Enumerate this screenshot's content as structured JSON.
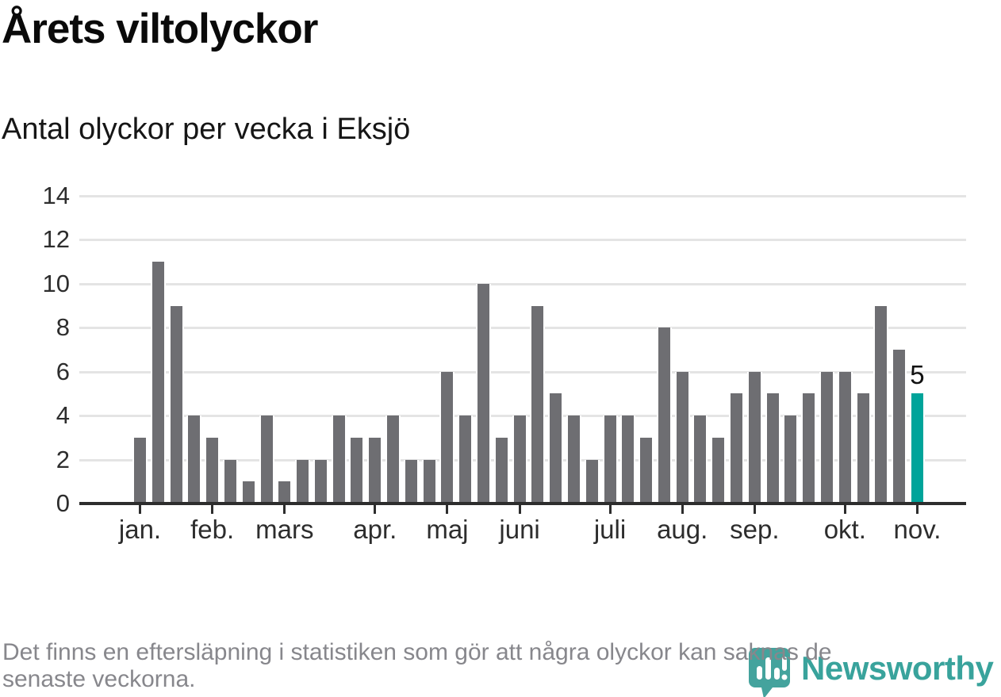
{
  "header": {
    "title": "Årets viltolyckor",
    "subtitle": "Antal olyckor per vecka i Eksjö"
  },
  "chart_data": {
    "type": "bar",
    "title": "Årets viltolyckor",
    "subtitle": "Antal olyckor per vecka i Eksjö",
    "x_unit": "vecka (week of year)",
    "values": [
      3,
      11,
      9,
      4,
      3,
      2,
      1,
      4,
      1,
      2,
      2,
      4,
      3,
      3,
      4,
      2,
      2,
      6,
      4,
      10,
      3,
      4,
      9,
      5,
      4,
      2,
      4,
      4,
      3,
      8,
      6,
      4,
      3,
      5,
      6,
      5,
      4,
      5,
      6,
      6,
      5,
      9,
      7,
      5
    ],
    "weeks": [
      1,
      2,
      3,
      4,
      5,
      6,
      7,
      8,
      9,
      10,
      11,
      12,
      13,
      14,
      15,
      16,
      17,
      18,
      19,
      20,
      21,
      22,
      23,
      24,
      25,
      26,
      27,
      28,
      29,
      30,
      31,
      32,
      33,
      34,
      35,
      36,
      37,
      38,
      39,
      40,
      41,
      42,
      43,
      44
    ],
    "months": [
      {
        "label": "jan.",
        "week": 1
      },
      {
        "label": "feb.",
        "week": 5
      },
      {
        "label": "mars",
        "week": 9
      },
      {
        "label": "apr.",
        "week": 14
      },
      {
        "label": "maj",
        "week": 18
      },
      {
        "label": "juni",
        "week": 22
      },
      {
        "label": "juli",
        "week": 27
      },
      {
        "label": "aug.",
        "week": 31
      },
      {
        "label": "sep.",
        "week": 35
      },
      {
        "label": "okt.",
        "week": 40
      },
      {
        "label": "nov.",
        "week": 44
      }
    ],
    "y_ticks": [
      0,
      2,
      4,
      6,
      8,
      10,
      12,
      14
    ],
    "ylim": [
      0,
      14
    ],
    "grid": true,
    "legend": false,
    "highlight_last_bar": true,
    "highlight_value_label": "5",
    "colors": {
      "bar": "#6e6e72",
      "highlight": "#00a49a",
      "gridline": "#e4e4e4",
      "axis": "#2d2d2d",
      "label": "#2d2d2d"
    }
  },
  "footer": {
    "line1": "Det finns en eftersläpning i statistiken som gör att några olyckor kan saknas de",
    "line2": "senaste veckorna."
  },
  "logo": {
    "text": "Newsworthy",
    "color": "#39a39c",
    "mark": "pin-with-bar-chart-icon"
  }
}
